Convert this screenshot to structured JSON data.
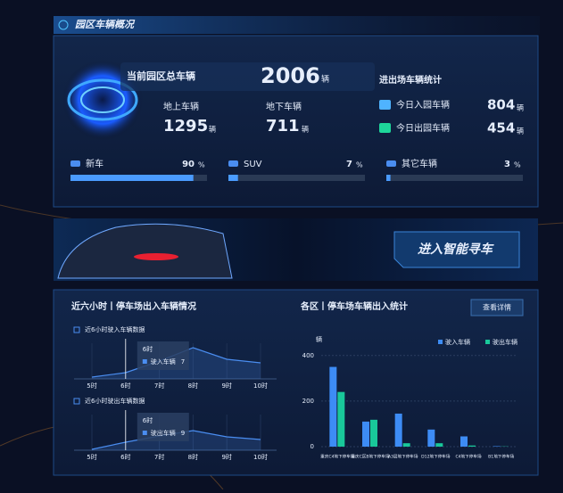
{
  "header": {
    "title": "园区车辆概况"
  },
  "overview": {
    "total_label": "当前园区总车辆",
    "total": 2006,
    "unit": "辆",
    "above_label": "地上车辆",
    "above": 1295,
    "below_label": "地下车辆",
    "below": 711,
    "flow_title": "进出场车辆统计",
    "in_label": "今日入园车辆",
    "in": 804,
    "out_label": "今日出园车辆",
    "out": 454
  },
  "shares": {
    "unit": "%",
    "xlim": [
      0,
      100
    ],
    "items": [
      {
        "name": "新车",
        "value": 90
      },
      {
        "name": "SUV",
        "value": 7
      },
      {
        "name": "其它车辆",
        "value": 3
      }
    ]
  },
  "banner": {
    "button": "进入智能寻车"
  },
  "trend": {
    "title": "近六小时丨停车场出入车辆情况"
  },
  "chart_data": [
    {
      "type": "line",
      "subtitle": "近6小时驶入车辆数据",
      "categories": [
        "5时",
        "6时",
        "7时",
        "8时",
        "9时",
        "10时"
      ],
      "ylim": [
        0,
        40
      ],
      "series": [
        {
          "name": "驶入车辆",
          "color": "#4a8df0",
          "values": [
            2,
            7,
            20,
            35,
            22,
            18
          ]
        }
      ]
    },
    {
      "type": "line",
      "subtitle": "近6小时驶出车辆数据",
      "categories": [
        "5时",
        "6时",
        "7时",
        "8时",
        "9时",
        "10时"
      ],
      "ylim": [
        0,
        40
      ],
      "series": [
        {
          "name": "驶出车辆",
          "color": "#4a8df0",
          "values": [
            1,
            9,
            16,
            22,
            15,
            12
          ]
        }
      ]
    },
    {
      "type": "bar",
      "title": "各区丨停车场车辆出入统计",
      "button": "查看详情",
      "ylabel": "辆",
      "categories": [
        "重庆C4地下停车场",
        "重庆C区B地下停车场",
        "A3层地下停车场",
        "D12地下停车场",
        "C4地下停车场",
        "B1地下停车场"
      ],
      "ylim": [
        0,
        450
      ],
      "yticks": [
        0,
        200,
        400
      ],
      "grid": true,
      "series": [
        {
          "name": "驶入车辆",
          "color": "#3d8cf5",
          "values": [
            350,
            110,
            145,
            75,
            45,
            2
          ]
        },
        {
          "name": "驶出车辆",
          "color": "#19c89a",
          "values": [
            240,
            118,
            15,
            15,
            5,
            1
          ]
        }
      ]
    }
  ]
}
